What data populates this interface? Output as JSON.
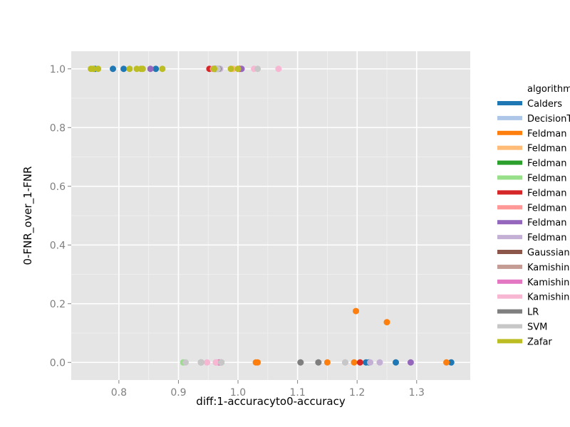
{
  "chart_data": {
    "type": "scatter",
    "xlabel": "diff:1-accuracyto0-accuracy",
    "ylabel": "0-FNR_over_1-FNR",
    "xlim": [
      0.72,
      1.39
    ],
    "ylim": [
      -0.06,
      1.06
    ],
    "x_ticks": [
      "0.8",
      "0.9",
      "1.0",
      "1.1",
      "1.2",
      "1.3"
    ],
    "y_ticks": [
      "0.0",
      "0.2",
      "0.4",
      "0.6",
      "0.8",
      "1.0"
    ],
    "grid": true,
    "legend": {
      "title": "algorithm",
      "placement": "right",
      "entries": [
        {
          "label": "Calders",
          "color": "#1f77b4"
        },
        {
          "label": "DecisionT",
          "color": "#aec7e8"
        },
        {
          "label": "Feldman",
          "color": "#ff7f0e"
        },
        {
          "label": "Feldman",
          "color": "#ffbb78"
        },
        {
          "label": "Feldman",
          "color": "#2ca02c"
        },
        {
          "label": "Feldman",
          "color": "#98df8a"
        },
        {
          "label": "Feldman",
          "color": "#d62728"
        },
        {
          "label": "Feldman",
          "color": "#ff9896"
        },
        {
          "label": "Feldman",
          "color": "#9467bd"
        },
        {
          "label": "Feldman",
          "color": "#c5b0d5"
        },
        {
          "label": "Gaussian",
          "color": "#8c564b"
        },
        {
          "label": "Kamishin",
          "color": "#c49c94"
        },
        {
          "label": "Kamishin",
          "color": "#e377c2"
        },
        {
          "label": "Kamishin",
          "color": "#f7b6d2"
        },
        {
          "label": "LR",
          "color": "#7f7f7f"
        },
        {
          "label": "SVM",
          "color": "#c7c7c7"
        },
        {
          "label": "Zafar",
          "color": "#bcbd22"
        }
      ]
    },
    "series": [
      {
        "color": "#1f77b4",
        "points": [
          [
            0.76,
            1.0
          ],
          [
            0.79,
            1.0
          ],
          [
            0.808,
            1.0
          ],
          [
            0.862,
            1.0
          ],
          [
            1.215,
            0.0
          ],
          [
            1.22,
            0.0
          ],
          [
            1.265,
            0.0
          ],
          [
            1.358,
            0.0
          ]
        ]
      },
      {
        "color": "#aec7e8",
        "points": [
          [
            0.965,
            1.0
          ],
          [
            1.0,
            1.0
          ],
          [
            0.97,
            0.0
          ]
        ]
      },
      {
        "color": "#ff7f0e",
        "points": [
          [
            1.03,
            0.0
          ],
          [
            1.033,
            0.0
          ],
          [
            1.15,
            0.0
          ],
          [
            1.195,
            0.0
          ],
          [
            1.198,
            0.175
          ],
          [
            1.25,
            0.137
          ],
          [
            1.35,
            0.0
          ]
        ]
      },
      {
        "color": "#ffbb78",
        "points": [
          [
            0.963,
            1.0
          ],
          [
            0.992,
            1.0
          ]
        ]
      },
      {
        "color": "#2ca02c",
        "points": [
          [
            0.962,
            1.0
          ]
        ]
      },
      {
        "color": "#98df8a",
        "points": [
          [
            0.908,
            0.0
          ]
        ]
      },
      {
        "color": "#d62728",
        "points": [
          [
            0.952,
            1.0
          ],
          [
            1.003,
            1.0
          ],
          [
            1.205,
            0.0
          ]
        ]
      },
      {
        "color": "#ff9896",
        "points": [
          [
            0.958,
            1.0
          ],
          [
            0.963,
            0.0
          ]
        ]
      },
      {
        "color": "#9467bd",
        "points": [
          [
            0.853,
            1.0
          ],
          [
            1.006,
            1.0
          ],
          [
            1.29,
            0.0
          ]
        ]
      },
      {
        "color": "#c5b0d5",
        "points": [
          [
            0.97,
            1.0
          ],
          [
            1.105,
            0.0
          ],
          [
            1.135,
            0.0
          ],
          [
            1.18,
            0.0
          ],
          [
            1.222,
            0.0
          ],
          [
            1.238,
            0.0
          ]
        ]
      },
      {
        "color": "#8c564b",
        "points": [
          [
            0.96,
            1.0
          ]
        ]
      },
      {
        "color": "#c49c94",
        "points": [
          [
            0.965,
            1.0
          ],
          [
            1.0,
            1.0
          ]
        ]
      },
      {
        "color": "#e377c2",
        "points": [
          [
            0.968,
            0.0
          ]
        ]
      },
      {
        "color": "#f7b6d2",
        "points": [
          [
            1.027,
            1.0
          ],
          [
            1.068,
            1.0
          ],
          [
            0.948,
            0.0
          ],
          [
            0.963,
            0.0
          ]
        ]
      },
      {
        "color": "#7f7f7f",
        "points": [
          [
            0.967,
            1.0
          ],
          [
            0.938,
            0.0
          ],
          [
            0.972,
            0.0
          ],
          [
            1.105,
            0.0
          ],
          [
            1.135,
            0.0
          ]
        ]
      },
      {
        "color": "#c7c7c7",
        "points": [
          [
            0.966,
            1.0
          ],
          [
            1.033,
            1.0
          ],
          [
            0.912,
            0.0
          ],
          [
            0.938,
            0.0
          ],
          [
            0.972,
            0.0
          ],
          [
            1.18,
            0.0
          ]
        ]
      },
      {
        "color": "#bcbd22",
        "points": [
          [
            0.753,
            1.0
          ],
          [
            0.757,
            1.0
          ],
          [
            0.765,
            1.0
          ],
          [
            0.818,
            1.0
          ],
          [
            0.83,
            1.0
          ],
          [
            0.837,
            1.0
          ],
          [
            0.84,
            1.0
          ],
          [
            0.873,
            1.0
          ],
          [
            0.96,
            1.0
          ],
          [
            0.988,
            1.0
          ],
          [
            1.0,
            1.0
          ]
        ]
      }
    ]
  }
}
